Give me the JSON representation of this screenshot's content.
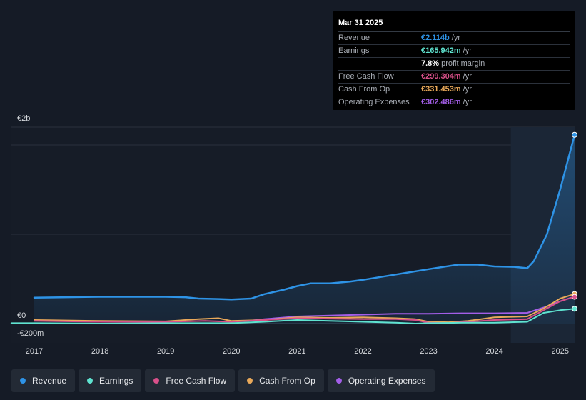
{
  "tooltip": {
    "date": "Mar 31 2025",
    "rows": [
      {
        "label": "Revenue",
        "value": "€2.114b",
        "unit": "/yr",
        "color": "#2e93e6"
      },
      {
        "label": "Earnings",
        "value": "€165.942m",
        "unit": "/yr",
        "color": "#5fe3d0"
      },
      {
        "label": "",
        "value": "7.8%",
        "unit": "profit margin",
        "color": "#ffffff"
      },
      {
        "label": "Free Cash Flow",
        "value": "€299.304m",
        "unit": "/yr",
        "color": "#d9508a"
      },
      {
        "label": "Cash From Op",
        "value": "€331.453m",
        "unit": "/yr",
        "color": "#e9a95a"
      },
      {
        "label": "Operating Expenses",
        "value": "€302.486m",
        "unit": "/yr",
        "color": "#a35ee8"
      }
    ]
  },
  "legend": [
    {
      "label": "Revenue",
      "color": "#2e93e6"
    },
    {
      "label": "Earnings",
      "color": "#5fe3d0"
    },
    {
      "label": "Free Cash Flow",
      "color": "#d9508a"
    },
    {
      "label": "Cash From Op",
      "color": "#e9a95a"
    },
    {
      "label": "Operating Expenses",
      "color": "#a35ee8"
    }
  ],
  "chart_data": {
    "type": "line",
    "title": "",
    "xlabel": "",
    "ylabel": "",
    "y_tick_labels": [
      "€2b",
      "€0",
      "-€200m"
    ],
    "x_tick_labels": [
      "2017",
      "2018",
      "2019",
      "2020",
      "2021",
      "2022",
      "2023",
      "2024",
      "2025"
    ],
    "ylim": [
      -200,
      2200
    ],
    "x_range": [
      2016.65,
      2025.25
    ],
    "highlight_from": 2024.25,
    "grid": true,
    "legend_position": "bottom-left",
    "series": [
      {
        "name": "Revenue",
        "color": "#2e93e6",
        "area": true,
        "points": [
          [
            2017.0,
            290
          ],
          [
            2017.5,
            295
          ],
          [
            2018.0,
            300
          ],
          [
            2018.5,
            300
          ],
          [
            2019.0,
            300
          ],
          [
            2019.3,
            295
          ],
          [
            2019.5,
            280
          ],
          [
            2019.8,
            275
          ],
          [
            2020.0,
            270
          ],
          [
            2020.3,
            280
          ],
          [
            2020.5,
            330
          ],
          [
            2020.8,
            380
          ],
          [
            2021.0,
            420
          ],
          [
            2021.2,
            450
          ],
          [
            2021.5,
            450
          ],
          [
            2021.8,
            470
          ],
          [
            2022.0,
            490
          ],
          [
            2022.5,
            550
          ],
          [
            2023.0,
            610
          ],
          [
            2023.45,
            660
          ],
          [
            2023.75,
            660
          ],
          [
            2024.0,
            640
          ],
          [
            2024.3,
            635
          ],
          [
            2024.5,
            620
          ],
          [
            2024.6,
            700
          ],
          [
            2024.8,
            1000
          ],
          [
            2025.0,
            1500
          ],
          [
            2025.22,
            2114
          ]
        ]
      },
      {
        "name": "Earnings",
        "color": "#5fe3d0",
        "area": false,
        "points": [
          [
            2016.65,
            5
          ],
          [
            2017.0,
            5
          ],
          [
            2018.0,
            0
          ],
          [
            2019.0,
            5
          ],
          [
            2020.0,
            5
          ],
          [
            2020.5,
            20
          ],
          [
            2021.0,
            40
          ],
          [
            2021.5,
            30
          ],
          [
            2022.0,
            20
          ],
          [
            2022.5,
            10
          ],
          [
            2022.8,
            0
          ],
          [
            2023.0,
            5
          ],
          [
            2023.5,
            10
          ],
          [
            2024.0,
            10
          ],
          [
            2024.5,
            20
          ],
          [
            2024.75,
            120
          ],
          [
            2025.0,
            150
          ],
          [
            2025.22,
            165.942
          ]
        ]
      },
      {
        "name": "Free Cash Flow",
        "color": "#d9508a",
        "area": false,
        "points": [
          [
            2017.0,
            30
          ],
          [
            2018.0,
            20
          ],
          [
            2019.0,
            20
          ],
          [
            2019.6,
            30
          ],
          [
            2020.0,
            20
          ],
          [
            2020.5,
            40
          ],
          [
            2021.0,
            60
          ],
          [
            2021.5,
            55
          ],
          [
            2022.0,
            50
          ],
          [
            2022.5,
            50
          ],
          [
            2022.8,
            40
          ],
          [
            2023.0,
            10
          ],
          [
            2023.3,
            5
          ],
          [
            2023.6,
            20
          ],
          [
            2024.0,
            40
          ],
          [
            2024.5,
            50
          ],
          [
            2024.75,
            150
          ],
          [
            2025.0,
            250
          ],
          [
            2025.22,
            299.304
          ]
        ]
      },
      {
        "name": "Cash From Op",
        "color": "#e9a95a",
        "area": false,
        "points": [
          [
            2017.0,
            40
          ],
          [
            2018.0,
            30
          ],
          [
            2019.0,
            25
          ],
          [
            2019.5,
            50
          ],
          [
            2019.8,
            60
          ],
          [
            2020.0,
            30
          ],
          [
            2020.5,
            40
          ],
          [
            2021.0,
            70
          ],
          [
            2021.5,
            65
          ],
          [
            2022.0,
            70
          ],
          [
            2022.5,
            60
          ],
          [
            2022.8,
            50
          ],
          [
            2023.0,
            20
          ],
          [
            2023.3,
            15
          ],
          [
            2023.6,
            30
          ],
          [
            2024.0,
            70
          ],
          [
            2024.5,
            80
          ],
          [
            2024.75,
            170
          ],
          [
            2025.0,
            280
          ],
          [
            2025.22,
            331.453
          ]
        ]
      },
      {
        "name": "Operating Expenses",
        "color": "#a35ee8",
        "area": false,
        "points": [
          [
            2020.25,
            30
          ],
          [
            2020.5,
            50
          ],
          [
            2021.0,
            80
          ],
          [
            2021.5,
            90
          ],
          [
            2022.0,
            100
          ],
          [
            2022.5,
            110
          ],
          [
            2023.0,
            110
          ],
          [
            2023.5,
            115
          ],
          [
            2024.0,
            115
          ],
          [
            2024.5,
            120
          ],
          [
            2024.75,
            180
          ],
          [
            2025.0,
            250
          ],
          [
            2025.22,
            302.486
          ]
        ]
      }
    ]
  }
}
